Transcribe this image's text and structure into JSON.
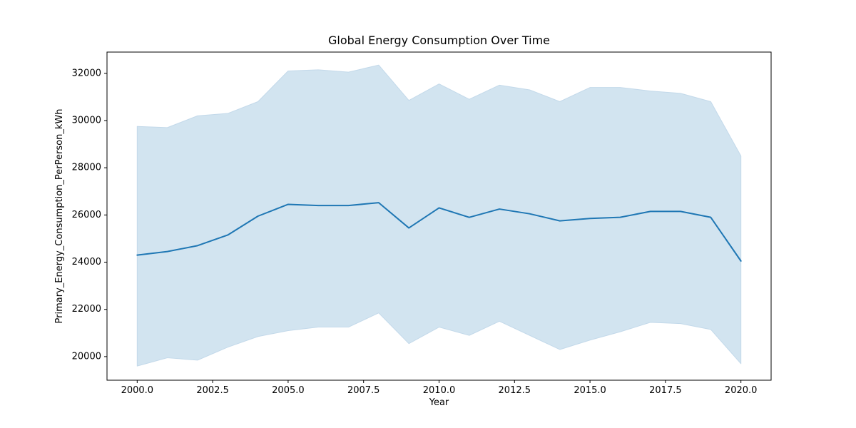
{
  "figure": {
    "title": "Global Energy Consumption Over Time",
    "xlabel": "Year",
    "ylabel": "Primary_Energy_Consumption_PerPerson_kWh"
  },
  "colors": {
    "line": "#1f77b4",
    "band_fill": "#d2e4f0",
    "band_edge": "#c3d9ea",
    "spine": "#000000",
    "text": "#000000",
    "background": "#ffffff"
  },
  "chart_data": {
    "type": "line",
    "title": "Global Energy Consumption Over Time",
    "xlabel": "Year",
    "ylabel": "Primary_Energy_Consumption_PerPerson_kWh",
    "x": [
      2000,
      2001,
      2002,
      2003,
      2004,
      2005,
      2006,
      2007,
      2008,
      2009,
      2010,
      2011,
      2012,
      2013,
      2014,
      2015,
      2016,
      2017,
      2018,
      2019,
      2020
    ],
    "series": [
      {
        "name": "mean",
        "role": "line",
        "values": [
          24300,
          24450,
          24700,
          25150,
          25950,
          26450,
          26400,
          26400,
          26520,
          25450,
          26300,
          25900,
          26250,
          26050,
          25750,
          25850,
          25900,
          26150,
          26150,
          25900,
          24050
        ]
      },
      {
        "name": "upper_bound",
        "role": "band-upper",
        "values": [
          29750,
          29700,
          30200,
          30300,
          30800,
          32100,
          32150,
          32050,
          32350,
          30850,
          31550,
          30900,
          31500,
          31300,
          30800,
          31400,
          31400,
          31250,
          31150,
          30800,
          28500
        ]
      },
      {
        "name": "lower_bound",
        "role": "band-lower",
        "values": [
          19600,
          19950,
          19850,
          20400,
          20850,
          21100,
          21250,
          21250,
          21850,
          20550,
          21250,
          20900,
          21500,
          20900,
          20300,
          20700,
          21050,
          21450,
          21400,
          21150,
          19700
        ]
      }
    ],
    "xlim": [
      1999,
      2021
    ],
    "ylim": [
      19000,
      32900
    ],
    "xticks": [
      2000,
      2002.5,
      2005,
      2007.5,
      2010,
      2012.5,
      2015,
      2017.5,
      2020
    ],
    "xtick_labels": [
      "2000.0",
      "2002.5",
      "2005.0",
      "2007.5",
      "2010.0",
      "2012.5",
      "2015.0",
      "2017.5",
      "2020.0"
    ],
    "yticks": [
      20000,
      22000,
      24000,
      26000,
      28000,
      30000,
      32000
    ],
    "ytick_labels": [
      "20000",
      "22000",
      "24000",
      "26000",
      "28000",
      "30000",
      "32000"
    ],
    "grid": false,
    "legend": false
  }
}
